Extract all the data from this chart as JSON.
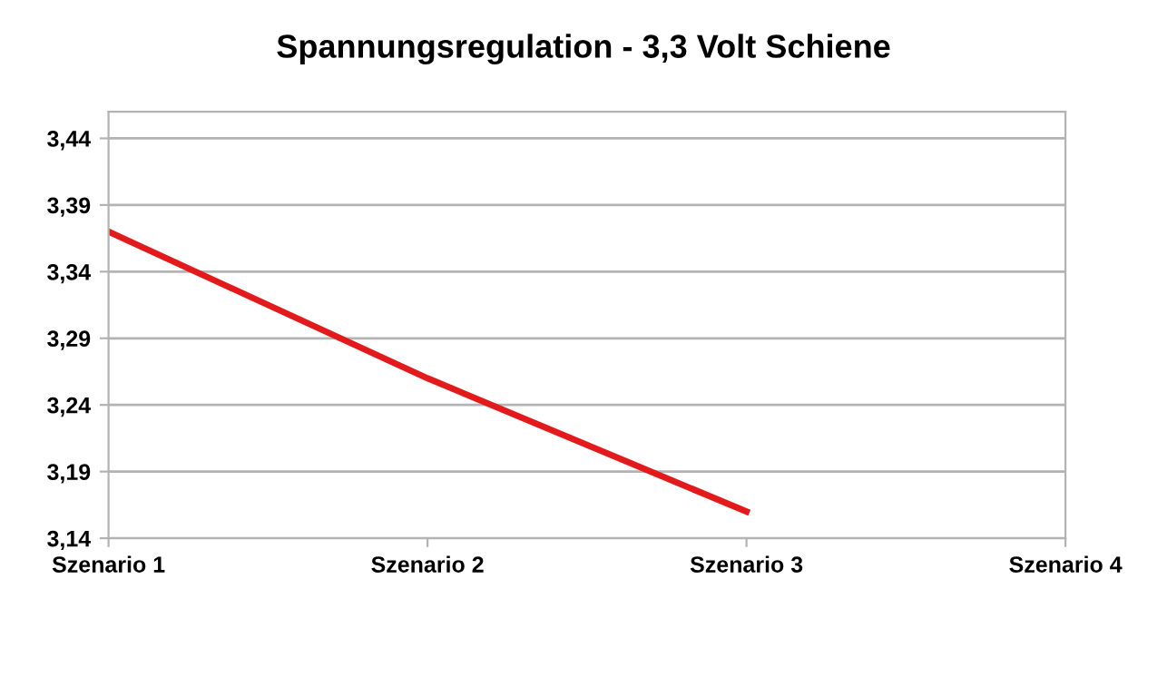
{
  "chart_data": {
    "type": "line",
    "title": "Spannungsregulation - 3,3 Volt Schiene",
    "categories": [
      "Szenario 1",
      "Szenario 2",
      "Szenario 3",
      "Szenario 4"
    ],
    "series": [
      {
        "color": "#e31a1c",
        "values": [
          3.37,
          3.26,
          3.16,
          null
        ]
      }
    ],
    "ylim": [
      3.14,
      3.46
    ],
    "yticks": [
      {
        "value": 3.14,
        "label": "3,14"
      },
      {
        "value": 3.19,
        "label": "3,19"
      },
      {
        "value": 3.24,
        "label": "3,24"
      },
      {
        "value": 3.29,
        "label": "3,29"
      },
      {
        "value": 3.34,
        "label": "3,34"
      },
      {
        "value": 3.39,
        "label": "3,39"
      },
      {
        "value": 3.44,
        "label": "3,44"
      }
    ],
    "grid": "y",
    "marker": "none",
    "line_style": "solid"
  }
}
